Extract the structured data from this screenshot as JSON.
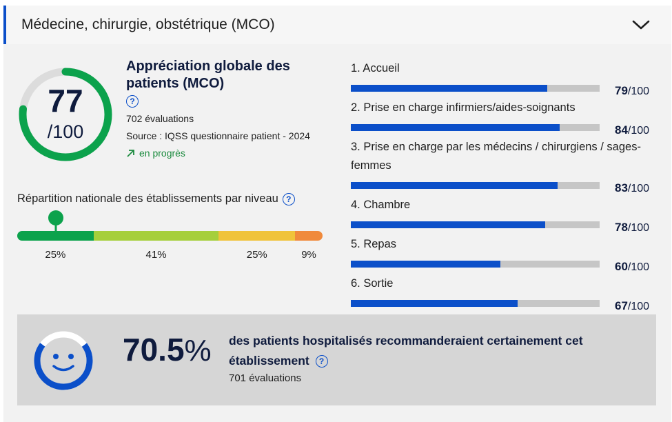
{
  "header": {
    "title": "Médecine, chirurgie, obstétrique (MCO)",
    "expand_icon": "chevron-down-icon"
  },
  "overall": {
    "score": "77",
    "max": "/100",
    "score_value": 77,
    "title": "Appréciation globale des patients (MCO)",
    "help_icon": "help-icon",
    "evaluations": "702 évaluations",
    "source": "Source : IQSS questionnaire patient - 2024",
    "trend": "en progrès",
    "trend_icon": "arrow-up-right-icon"
  },
  "distribution": {
    "label": "Répartition nationale des établissements par niveau",
    "segments": [
      {
        "pct": "25%",
        "value": 25,
        "color": "#0ca24c"
      },
      {
        "pct": "41%",
        "value": 41,
        "color": "#a6cf3b"
      },
      {
        "pct": "25%",
        "value": 25,
        "color": "#f0c33a"
      },
      {
        "pct": "9%",
        "value": 9,
        "color": "#f08a3c"
      }
    ],
    "marker_icon": "map-pin-icon"
  },
  "criteria": [
    {
      "label": "1. Accueil",
      "score": "79",
      "suffix": "/100",
      "value": 79
    },
    {
      "label": "2. Prise en charge infirmiers/aides-soignants",
      "score": "84",
      "suffix": "/100",
      "value": 84
    },
    {
      "label": "3. Prise en charge par les médecins / chirurgiens / sages-femmes",
      "score": "83",
      "suffix": "/100",
      "value": 83
    },
    {
      "label": "4. Chambre",
      "score": "78",
      "suffix": "/100",
      "value": 78
    },
    {
      "label": "5. Repas",
      "score": "60",
      "suffix": "/100",
      "value": 60
    },
    {
      "label": "6. Sortie",
      "score": "67",
      "suffix": "/100",
      "value": 67
    }
  ],
  "recommendation": {
    "value": "70.5",
    "unit": "%",
    "text": "des patients hospitalisés recommanderaient certainement cet établissement",
    "evaluations": "701 évaluations",
    "icon": "smiley-icon",
    "gauge_fraction": 0.705
  },
  "colors": {
    "accent": "#0b4fc9",
    "gauge_green": "#0ca24c",
    "navy": "#0f1b3d"
  }
}
